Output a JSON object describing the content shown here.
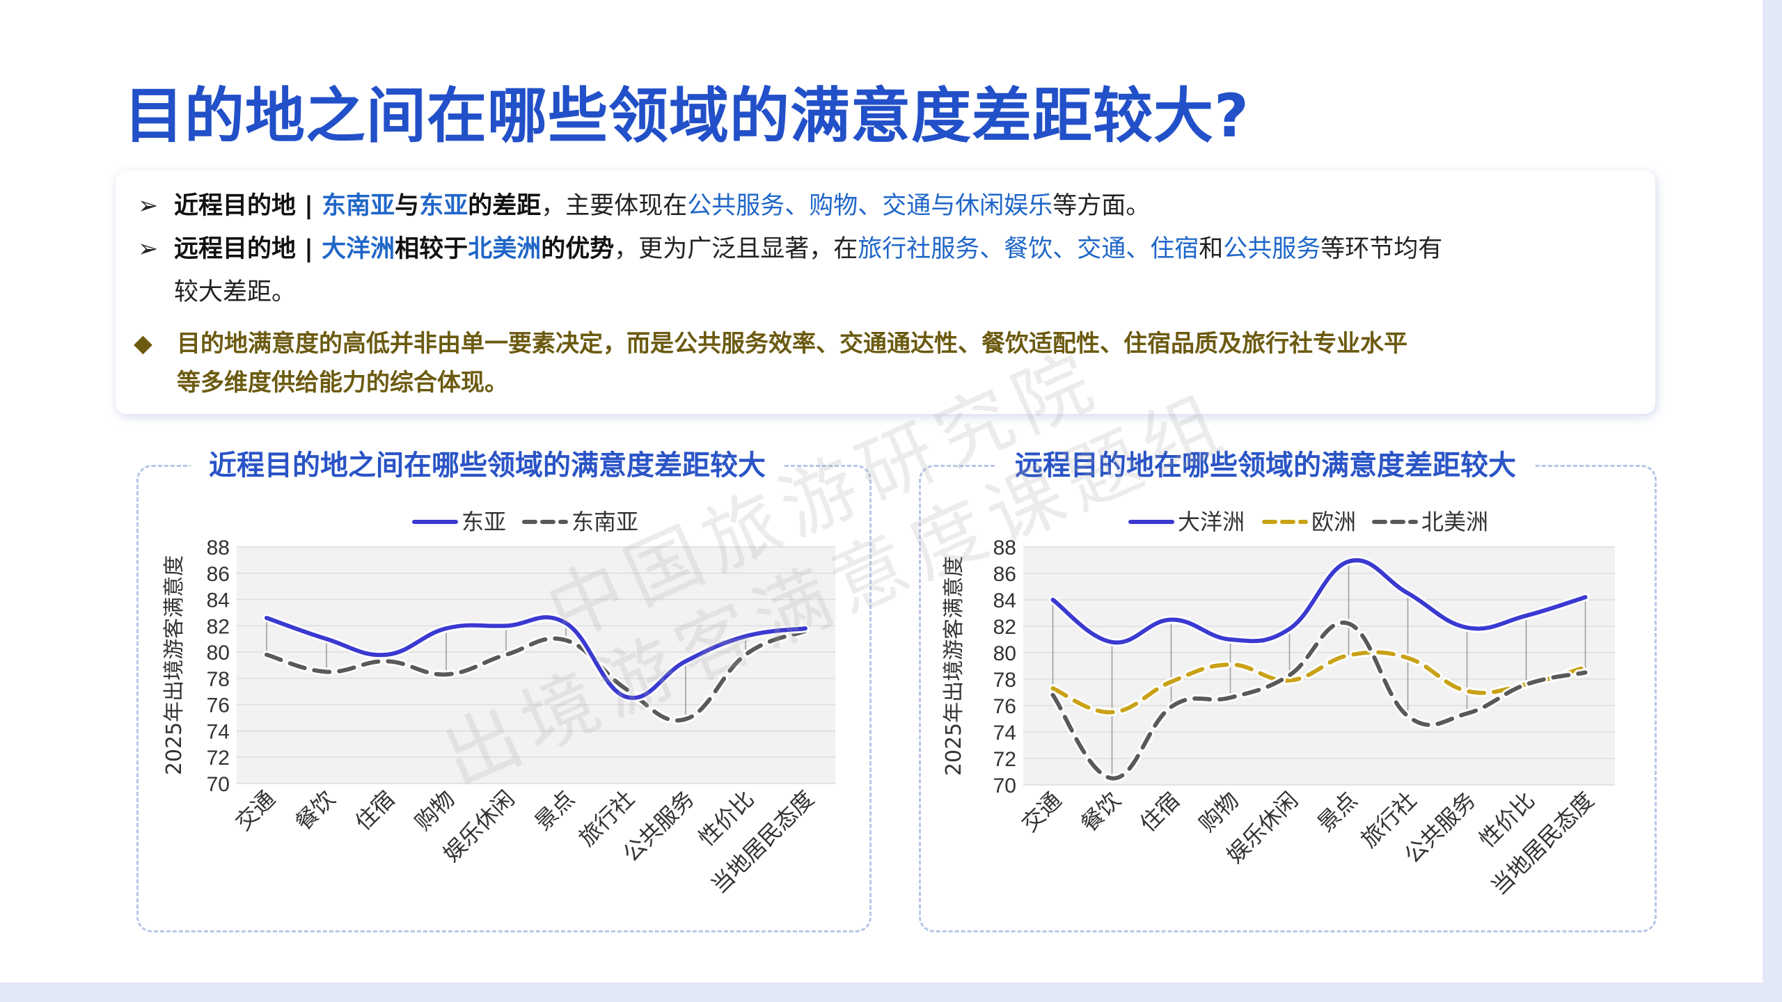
{
  "page": {
    "title": "目的地之间在哪些领域的满意度差距较大?"
  },
  "summary": {
    "bullet1": {
      "marker": "➢",
      "part1": "近程目的地 | ",
      "part2": "东南亚",
      "part3": "与",
      "part4": "东亚",
      "part5": "的差距",
      "part6": "，主要体现在",
      "part7": "公共服务、购物、交通与休闲娱乐",
      "part8": "等方面。"
    },
    "bullet2": {
      "marker": "➢",
      "part1": "远程目的地 | ",
      "part2": "大洋洲",
      "part3": "相较于",
      "part4": "北美洲",
      "part5": "的优势",
      "part6": "，更为广泛且显著，在",
      "part7": "旅行社服务、餐饮、交通、住宿",
      "part8": "和",
      "part9": "公共服务",
      "part10": "等环节均有",
      "part11": "较大差距。"
    },
    "conclusion": {
      "marker": "◆",
      "line1": "目的地满意度的高低并非由单一要素决定，而是公共服务效率、交通通达性、餐饮适配性、住宿品质及旅行社专业水平",
      "line2": "等多维度供给能力的综合体现。"
    }
  },
  "watermark": {
    "line1": "中国旅游研究院",
    "line2": "出境游客满意度课题组"
  },
  "chart_data": [
    {
      "type": "line",
      "title": "近程目的地之间在哪些领域的满意度差距较大",
      "ylabel": "2025年出境游客满意度",
      "xlabel": "",
      "ylim": [
        70,
        88
      ],
      "yticks": [
        70,
        72,
        74,
        76,
        78,
        80,
        82,
        84,
        86,
        88
      ],
      "categories": [
        "交通",
        "餐饮",
        "住宿",
        "购物",
        "娱乐休闲",
        "景点",
        "旅行社",
        "公共服务",
        "性价比",
        "当地居民态度"
      ],
      "series": [
        {
          "name": "东亚",
          "values": [
            82.6,
            81.0,
            79.8,
            81.8,
            82.0,
            82.2,
            76.6,
            79.3,
            81.2,
            81.8
          ],
          "color": "#3a39d0",
          "style": "solid"
        },
        {
          "name": "东南亚",
          "values": [
            79.8,
            78.5,
            79.3,
            78.3,
            79.8,
            80.9,
            77.2,
            74.9,
            79.8,
            81.6
          ],
          "color": "#595959",
          "style": "dashed"
        }
      ],
      "legend": "top-center",
      "grid": true
    },
    {
      "type": "line",
      "title": "远程目的地在哪些领域的满意度差距较大",
      "ylabel": "2025年出境游客满意度",
      "xlabel": "",
      "ylim": [
        70,
        88
      ],
      "yticks": [
        70,
        72,
        74,
        76,
        78,
        80,
        82,
        84,
        86,
        88
      ],
      "categories": [
        "交通",
        "餐饮",
        "住宿",
        "购物",
        "娱乐休闲",
        "景点",
        "旅行社",
        "公共服务",
        "性价比",
        "当地居民态度"
      ],
      "series": [
        {
          "name": "大洋洲",
          "values": [
            84.0,
            80.8,
            82.5,
            81.0,
            81.8,
            86.9,
            84.5,
            81.9,
            82.8,
            84.2
          ],
          "color": "#3a39d0",
          "style": "solid"
        },
        {
          "name": "欧洲",
          "values": [
            77.3,
            75.5,
            77.8,
            79.1,
            77.9,
            79.8,
            79.6,
            77.1,
            77.6,
            78.9
          ],
          "color": "#c9a217",
          "style": "dashed"
        },
        {
          "name": "北美洲",
          "values": [
            76.8,
            70.5,
            75.9,
            76.6,
            78.3,
            82.2,
            75.2,
            75.4,
            77.6,
            78.5
          ],
          "color": "#595959",
          "style": "dashed"
        }
      ],
      "legend": "top-center",
      "grid": true
    }
  ]
}
